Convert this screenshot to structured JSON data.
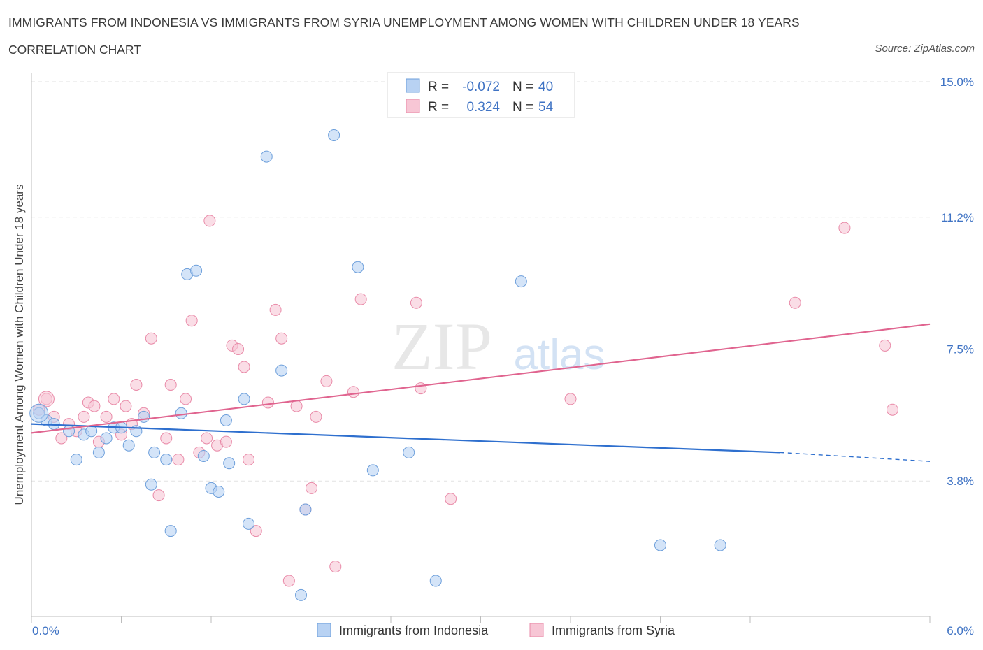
{
  "header": {
    "title": "IMMIGRANTS FROM INDONESIA VS IMMIGRANTS FROM SYRIA UNEMPLOYMENT AMONG WOMEN WITH CHILDREN UNDER 18 YEARS",
    "subtitle": "CORRELATION CHART",
    "source": "Source: ZipAtlas.com"
  },
  "watermark": {
    "zip": "ZIP",
    "atlas": "atlas"
  },
  "colors": {
    "indonesia_fill": "#b8d2f3",
    "indonesia_stroke": "#6d9fdb",
    "indonesia_line": "#2e6fce",
    "syria_fill": "#f7c6d5",
    "syria_stroke": "#e98aa8",
    "syria_line": "#e0648f",
    "grid": "#e2e2e2",
    "axis_label": "#3f73c4"
  },
  "legend": {
    "rows": [
      {
        "r_label": "R =",
        "r_value": "-0.072",
        "n_label": "N =",
        "n_value": "40"
      },
      {
        "r_label": "R =",
        "r_value": "0.324",
        "n_label": "N =",
        "n_value": "54"
      }
    ]
  },
  "chart_data": {
    "type": "scatter",
    "title": "IMMIGRANTS FROM INDONESIA VS IMMIGRANTS FROM SYRIA UNEMPLOYMENT AMONG WOMEN WITH CHILDREN UNDER 18 YEARS",
    "subtitle": "CORRELATION CHART",
    "xlabel": "",
    "ylabel": "Unemployment Among Women with Children Under 18 years",
    "xlim": [
      0,
      6
    ],
    "ylim": [
      0,
      15
    ],
    "x_tick_labels": [
      "0.0%",
      "6.0%"
    ],
    "y_ticks": [
      3.8,
      7.5,
      11.2,
      15.0
    ],
    "y_tick_labels": [
      "3.8%",
      "7.5%",
      "11.2%",
      "15.0%"
    ],
    "grid": true,
    "legend_position": "top-center",
    "series": [
      {
        "name": "Immigrants from Indonesia",
        "r": -0.072,
        "n": 40,
        "trend": {
          "x0": 0.0,
          "y0": 5.4,
          "x1": 5.0,
          "y1": 4.6,
          "dashed_to_x": 6.0,
          "dashed_to_y": 4.35
        },
        "points": [
          [
            0.05,
            5.7
          ],
          [
            0.1,
            5.5
          ],
          [
            0.15,
            5.4
          ],
          [
            0.25,
            5.2
          ],
          [
            0.3,
            4.4
          ],
          [
            0.35,
            5.1
          ],
          [
            0.4,
            5.2
          ],
          [
            0.45,
            4.6
          ],
          [
            0.5,
            5.0
          ],
          [
            0.55,
            5.3
          ],
          [
            0.6,
            5.3
          ],
          [
            0.65,
            4.8
          ],
          [
            0.7,
            5.2
          ],
          [
            0.75,
            5.6
          ],
          [
            0.8,
            3.7
          ],
          [
            0.82,
            4.6
          ],
          [
            0.9,
            4.4
          ],
          [
            0.93,
            2.4
          ],
          [
            1.0,
            5.7
          ],
          [
            1.04,
            9.6
          ],
          [
            1.1,
            9.7
          ],
          [
            1.15,
            4.5
          ],
          [
            1.2,
            3.6
          ],
          [
            1.25,
            3.5
          ],
          [
            1.3,
            5.5
          ],
          [
            1.32,
            4.3
          ],
          [
            1.42,
            6.1
          ],
          [
            1.45,
            2.6
          ],
          [
            1.57,
            12.9
          ],
          [
            1.67,
            6.9
          ],
          [
            1.8,
            0.6
          ],
          [
            1.83,
            3.0
          ],
          [
            2.02,
            13.5
          ],
          [
            2.18,
            9.8
          ],
          [
            2.28,
            4.1
          ],
          [
            2.52,
            4.6
          ],
          [
            2.7,
            1.0
          ],
          [
            3.27,
            9.4
          ],
          [
            4.2,
            2.0
          ],
          [
            4.6,
            2.0
          ]
        ]
      },
      {
        "name": "Immigrants from Syria",
        "r": 0.324,
        "n": 54,
        "trend": {
          "x0": 0.0,
          "y0": 5.15,
          "x1": 6.0,
          "y1": 8.2
        },
        "points": [
          [
            0.05,
            5.8
          ],
          [
            0.1,
            6.1
          ],
          [
            0.15,
            5.6
          ],
          [
            0.2,
            5.0
          ],
          [
            0.25,
            5.4
          ],
          [
            0.3,
            5.2
          ],
          [
            0.35,
            5.6
          ],
          [
            0.38,
            6.0
          ],
          [
            0.42,
            5.9
          ],
          [
            0.45,
            4.9
          ],
          [
            0.5,
            5.6
          ],
          [
            0.55,
            6.1
          ],
          [
            0.6,
            5.1
          ],
          [
            0.63,
            5.9
          ],
          [
            0.67,
            5.4
          ],
          [
            0.7,
            6.5
          ],
          [
            0.75,
            5.7
          ],
          [
            0.8,
            7.8
          ],
          [
            0.85,
            3.4
          ],
          [
            0.9,
            5.0
          ],
          [
            0.93,
            6.5
          ],
          [
            0.98,
            4.4
          ],
          [
            1.03,
            6.1
          ],
          [
            1.07,
            8.3
          ],
          [
            1.12,
            4.6
          ],
          [
            1.17,
            5.0
          ],
          [
            1.19,
            11.1
          ],
          [
            1.24,
            4.8
          ],
          [
            1.3,
            4.9
          ],
          [
            1.34,
            7.6
          ],
          [
            1.38,
            7.5
          ],
          [
            1.42,
            7.0
          ],
          [
            1.45,
            4.4
          ],
          [
            1.5,
            2.4
          ],
          [
            1.58,
            6.0
          ],
          [
            1.63,
            8.6
          ],
          [
            1.67,
            7.8
          ],
          [
            1.72,
            1.0
          ],
          [
            1.77,
            5.9
          ],
          [
            1.83,
            3.0
          ],
          [
            1.87,
            3.6
          ],
          [
            1.9,
            5.6
          ],
          [
            1.97,
            6.6
          ],
          [
            2.03,
            1.4
          ],
          [
            2.15,
            6.3
          ],
          [
            2.2,
            8.9
          ],
          [
            2.57,
            8.8
          ],
          [
            2.6,
            6.4
          ],
          [
            2.8,
            3.3
          ],
          [
            3.6,
            6.1
          ],
          [
            5.1,
            8.8
          ],
          [
            5.43,
            10.9
          ],
          [
            5.7,
            7.6
          ],
          [
            5.75,
            5.8
          ]
        ]
      }
    ]
  },
  "bottom_legend": {
    "items": [
      {
        "label": "Immigrants from Indonesia"
      },
      {
        "label": "Immigrants from Syria"
      }
    ]
  }
}
